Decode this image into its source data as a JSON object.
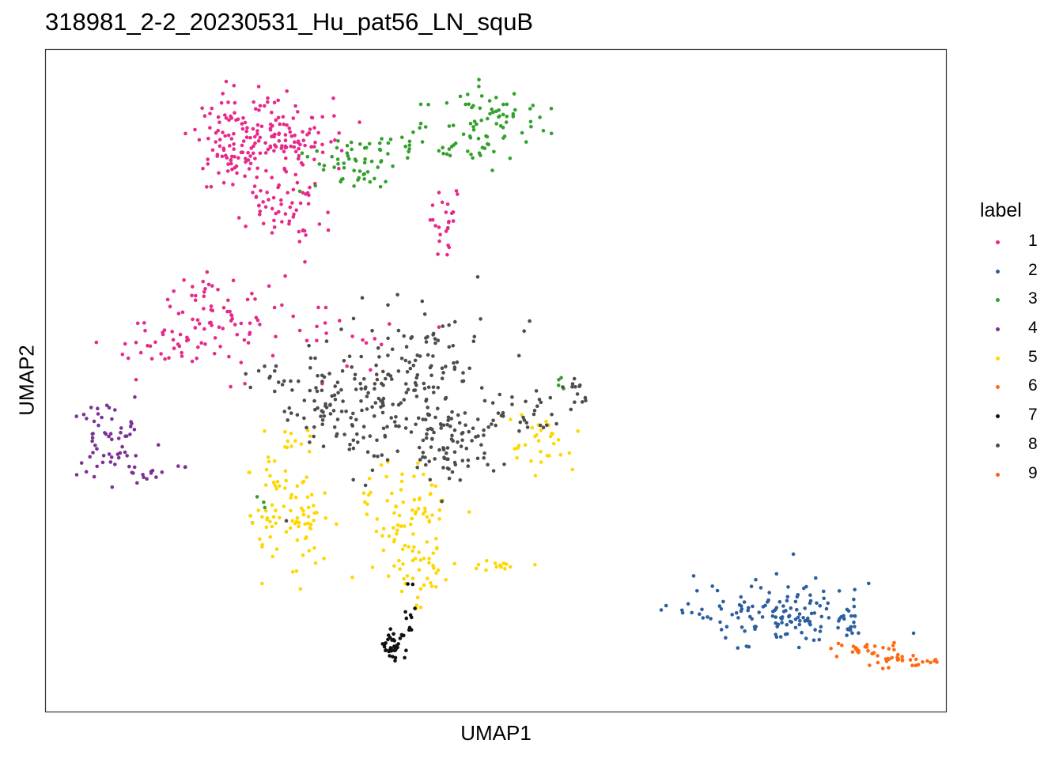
{
  "chart_data": {
    "type": "scatter",
    "title": "318981_2-2_20230531_Hu_pat56_LN_squB",
    "xlabel": "UMAP1",
    "ylabel": "UMAP2",
    "xlim": [
      0,
      100
    ],
    "ylim": [
      0,
      100
    ],
    "grid": false,
    "axis_ticks": false,
    "legend": {
      "title": "label",
      "placement": "right",
      "entries": [
        "1",
        "2",
        "3",
        "4",
        "5",
        "6",
        "7",
        "8",
        "9"
      ]
    },
    "series": [
      {
        "name": "1",
        "color": "#E7298A",
        "clusters": [
          {
            "cx": 21.5,
            "cy": 86,
            "sx": 2.5,
            "sy": 3.5,
            "n": 110
          },
          {
            "cx": 27,
            "cy": 86,
            "sx": 3,
            "sy": 3,
            "n": 90
          },
          {
            "cx": 26.5,
            "cy": 76.5,
            "sx": 2.5,
            "sy": 2.5,
            "n": 55
          },
          {
            "cx": 44.5,
            "cy": 73,
            "sx": 0.8,
            "sy": 2.5,
            "n": 25
          },
          {
            "cx": 19,
            "cy": 60,
            "sx": 4,
            "sy": 3.5,
            "n": 60
          },
          {
            "cx": 12,
            "cy": 56,
            "sx": 3,
            "sy": 2.5,
            "n": 30
          },
          {
            "cx": 28,
            "cy": 56,
            "sx": 6,
            "sy": 3,
            "n": 35
          }
        ]
      },
      {
        "name": "2",
        "color": "#2C5FA0",
        "clusters": [
          {
            "cx": 81.5,
            "cy": 15,
            "sx": 4,
            "sy": 2.3,
            "n": 130
          },
          {
            "cx": 89,
            "cy": 13.5,
            "sx": 1,
            "sy": 1.5,
            "n": 18
          },
          {
            "cx": 71,
            "cy": 15.3,
            "sx": 1.5,
            "sy": 0.5,
            "n": 10
          }
        ]
      },
      {
        "name": "3",
        "color": "#33A02C",
        "clusters": [
          {
            "cx": 49,
            "cy": 89,
            "sx": 3,
            "sy": 3,
            "n": 80
          },
          {
            "cx": 35.5,
            "cy": 83,
            "sx": 3,
            "sy": 2,
            "n": 60
          },
          {
            "cx": 42,
            "cy": 86,
            "sx": 2,
            "sy": 1.5,
            "n": 12
          },
          {
            "cx": 57,
            "cy": 49.5,
            "sx": 0.5,
            "sy": 0.4,
            "n": 4
          },
          {
            "cx": 24.5,
            "cy": 32,
            "sx": 0.6,
            "sy": 1.5,
            "n": 4
          }
        ]
      },
      {
        "name": "4",
        "color": "#7B3294",
        "clusters": [
          {
            "cx": 7,
            "cy": 40.5,
            "sx": 2,
            "sy": 3.5,
            "n": 60
          },
          {
            "cx": 11,
            "cy": 36,
            "sx": 1,
            "sy": 0.5,
            "n": 10
          },
          {
            "cx": 15,
            "cy": 36.5,
            "sx": 0.5,
            "sy": 0.5,
            "n": 3
          }
        ]
      },
      {
        "name": "5",
        "color": "#FFD700",
        "clusters": [
          {
            "cx": 27,
            "cy": 31,
            "sx": 2.2,
            "sy": 4.5,
            "n": 90
          },
          {
            "cx": 40,
            "cy": 30,
            "sx": 2.5,
            "sy": 3.5,
            "n": 70
          },
          {
            "cx": 41.5,
            "cy": 21,
            "sx": 1.5,
            "sy": 3,
            "n": 40
          },
          {
            "cx": 55,
            "cy": 40.5,
            "sx": 2,
            "sy": 2.5,
            "n": 30
          },
          {
            "cx": 50.5,
            "cy": 22,
            "sx": 1.8,
            "sy": 0.4,
            "n": 14
          },
          {
            "cx": 28,
            "cy": 41.5,
            "sx": 1,
            "sy": 0.8,
            "n": 8
          }
        ]
      },
      {
        "name": "6",
        "color": "#FF6A13",
        "clusters": [
          {
            "cx": 95.5,
            "cy": 7.5,
            "sx": 2,
            "sy": 0.6,
            "n": 30
          },
          {
            "cx": 91.5,
            "cy": 9.5,
            "sx": 2,
            "sy": 0.6,
            "n": 25
          }
        ]
      },
      {
        "name": "7",
        "color": "#111111",
        "clusters": [
          {
            "cx": 38.5,
            "cy": 10,
            "sx": 0.8,
            "sy": 1.2,
            "n": 35
          },
          {
            "cx": 40.5,
            "cy": 15,
            "sx": 0.4,
            "sy": 2.5,
            "n": 12
          }
        ]
      },
      {
        "name": "8",
        "color": "#4D4D4D",
        "clusters": [
          {
            "cx": 40,
            "cy": 48,
            "sx": 5.5,
            "sy": 6.5,
            "n": 210
          },
          {
            "cx": 31.5,
            "cy": 46,
            "sx": 3,
            "sy": 3,
            "n": 60
          },
          {
            "cx": 45,
            "cy": 41,
            "sx": 3,
            "sy": 2.5,
            "n": 60
          },
          {
            "cx": 53.5,
            "cy": 44.5,
            "sx": 2,
            "sy": 1.8,
            "n": 25
          },
          {
            "cx": 59,
            "cy": 48.5,
            "sx": 1,
            "sy": 1.2,
            "n": 12
          },
          {
            "cx": 25,
            "cy": 51,
            "sx": 2,
            "sy": 1,
            "n": 12
          }
        ]
      },
      {
        "name": "9",
        "color": "#FF5E10",
        "clusters": []
      }
    ]
  }
}
